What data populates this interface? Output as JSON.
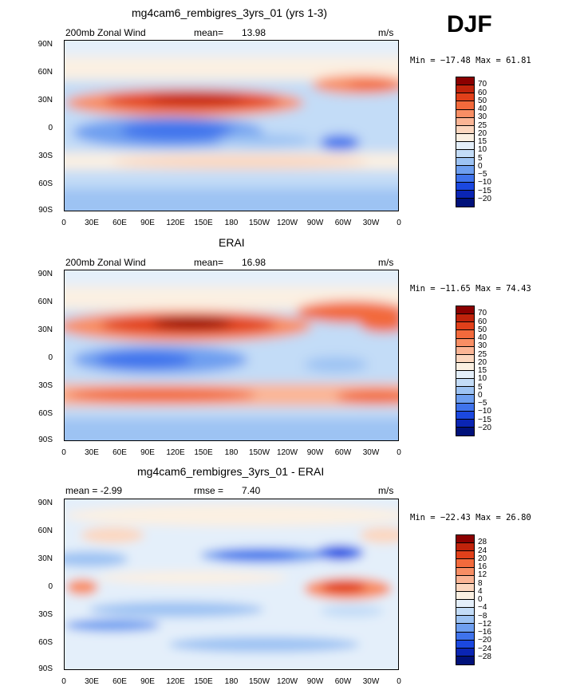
{
  "season": "DJF",
  "x_ticks": [
    "0",
    "30E",
    "60E",
    "90E",
    "120E",
    "150E",
    "180",
    "150W",
    "120W",
    "90W",
    "60W",
    "30W",
    "0"
  ],
  "y_ticks": [
    "90N",
    "60N",
    "30N",
    "0",
    "30S",
    "60S",
    "90S"
  ],
  "panels": [
    {
      "title": "mg4cam6_rembigres_3yrs_01 (yrs 1-3)",
      "left_label": "200mb  Zonal Wind",
      "stat_label": "mean=",
      "stat_value": "13.98",
      "units": "m/s",
      "minmax": "Min = −17.48 Max =   61.81",
      "levels": [
        "70",
        "60",
        "50",
        "40",
        "30",
        "25",
        "20",
        "15",
        "10",
        "5",
        "0",
        "−5",
        "−10",
        "−15",
        "−20"
      ],
      "colors": [
        "#8b0000",
        "#c0230b",
        "#e1401a",
        "#f26a3c",
        "#f88e64",
        "#fbb595",
        "#fcd7bf",
        "#fbf0e2",
        "#e4effa",
        "#c3dcf7",
        "#9dc3f3",
        "#6e9ff0",
        "#3f73ec",
        "#1b48e0",
        "#0a25b4",
        "#00117a"
      ]
    },
    {
      "title": "ERAI",
      "left_label": "200mb  Zonal Wind",
      "stat_label": "mean=",
      "stat_value": "16.98",
      "units": "m/s",
      "minmax": "Min = −11.65 Max =   74.43",
      "levels": [
        "70",
        "60",
        "50",
        "40",
        "30",
        "25",
        "20",
        "15",
        "10",
        "5",
        "0",
        "−5",
        "−10",
        "−15",
        "−20"
      ],
      "colors": [
        "#8b0000",
        "#c0230b",
        "#e1401a",
        "#f26a3c",
        "#f88e64",
        "#fbb595",
        "#fcd7bf",
        "#fbf0e2",
        "#e4effa",
        "#c3dcf7",
        "#9dc3f3",
        "#6e9ff0",
        "#3f73ec",
        "#1b48e0",
        "#0a25b4",
        "#00117a"
      ]
    },
    {
      "title": "mg4cam6_rembigres_3yrs_01 - ERAI",
      "left_label": "mean =   -2.99",
      "stat_label": "rmse =",
      "stat_value": "7.40",
      "units": "m/s",
      "minmax": "Min = −22.43 Max =   26.80",
      "levels": [
        "28",
        "24",
        "20",
        "16",
        "12",
        "8",
        "4",
        "0",
        "−4",
        "−8",
        "−12",
        "−16",
        "−20",
        "−24",
        "−28"
      ],
      "colors": [
        "#8b0000",
        "#c0230b",
        "#e1401a",
        "#f26a3c",
        "#f88e64",
        "#fbb595",
        "#fcd7bf",
        "#fbf0e2",
        "#e4effa",
        "#c3dcf7",
        "#9dc3f3",
        "#6e9ff0",
        "#3f73ec",
        "#1b48e0",
        "#0a25b4",
        "#00117a"
      ]
    }
  ]
}
